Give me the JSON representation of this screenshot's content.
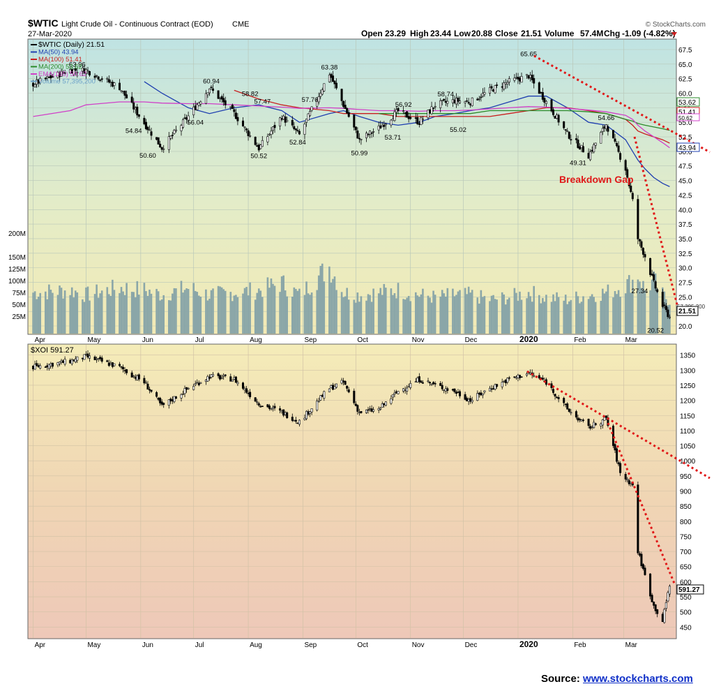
{
  "header": {
    "symbol": "$WTIC",
    "name": "Light Crude Oil - Continuous Contract (EOD)",
    "exchange": "CME",
    "date": "27-Mar-2020",
    "brand": "© StockCharts.com",
    "ohlc": {
      "open_label": "Open",
      "open": "23.29",
      "high_label": "High",
      "high": "23.44",
      "low_label": "Low",
      "low": "20.88",
      "close_label": "Close",
      "close": "21.51",
      "volume_label": "Volume",
      "volume": "57.4M",
      "chg_label": "Chg",
      "chg": "-1.09 (-4.82%)"
    }
  },
  "top_legend": [
    {
      "text": "$WTIC (Daily) 21.51",
      "color": "#000000"
    },
    {
      "text": "MA(50) 43.94",
      "color": "#1f3fb0"
    },
    {
      "text": "MA(100) 51.41",
      "color": "#c81e1e"
    },
    {
      "text": "MA(200) 53.62",
      "color": "#2a8a2a"
    },
    {
      "text": "EMA(165) 50.62",
      "color": "#d040c8"
    },
    {
      "text": "Volume 57,395,200",
      "color": "#6aa0c8"
    }
  ],
  "bottom_legend": {
    "text": "$XOI 591.27"
  },
  "annotations": {
    "breakdown": "Breakdown Gap",
    "wtic_last": "21.51",
    "wtic_last_vol": "57,395,200",
    "ma50": "43.94",
    "ma100": "51.41",
    "ma200": "53.62",
    "ema165": "50.62",
    "xoi_last": "591.27"
  },
  "source": {
    "label": "Source:",
    "link": "www.stockcharts.com"
  },
  "colors": {
    "price": "#000000",
    "ma50": "#1f3fb0",
    "ma100": "#c81e1e",
    "ma200": "#2a8a2a",
    "ema165": "#d040c8",
    "volume": "#8aa6a8",
    "trend": "#e01818"
  },
  "chart_data": [
    {
      "type": "line",
      "title": "$WTIC (Daily) 21.51",
      "subtitle": "Light Crude Oil - Continuous Contract (EOD) CME",
      "x_labels": [
        "Apr",
        "May",
        "Jun",
        "Jul",
        "Aug",
        "Sep",
        "Oct",
        "Nov",
        "Dec",
        "2020",
        "Feb",
        "Mar"
      ],
      "x": [
        "2019-04-01",
        "2019-04-22",
        "2019-05-01",
        "2019-05-20",
        "2019-06-03",
        "2019-06-13",
        "2019-06-28",
        "2019-07-10",
        "2019-07-24",
        "2019-08-07",
        "2019-08-20",
        "2019-08-30",
        "2019-09-16",
        "2019-09-24",
        "2019-10-03",
        "2019-10-14",
        "2019-10-25",
        "2019-11-06",
        "2019-11-15",
        "2019-11-26",
        "2019-12-05",
        "2019-12-16",
        "2019-12-27",
        "2020-01-07",
        "2020-01-17",
        "2020-01-29",
        "2020-02-10",
        "2020-02-20",
        "2020-03-02",
        "2020-03-06",
        "2020-03-09",
        "2020-03-13",
        "2020-03-18",
        "2020-03-23",
        "2020-03-27"
      ],
      "series": [
        {
          "name": "$WTIC",
          "values": [
            61.6,
            64.0,
            63.96,
            61.0,
            54.84,
            50.6,
            56.04,
            60.94,
            56.5,
            50.52,
            56.0,
            52.84,
            63.38,
            58.0,
            52.0,
            54.0,
            56.92,
            55.0,
            58.0,
            58.74,
            58.5,
            60.5,
            62.0,
            63.0,
            58.5,
            53.0,
            49.31,
            54.66,
            47.0,
            41.5,
            35.0,
            32.0,
            27.34,
            23.5,
            21.51
          ]
        },
        {
          "name": "MA(50)",
          "values": [
            null,
            null,
            null,
            null,
            62.0,
            60.0,
            57.5,
            56.5,
            57.5,
            58.0,
            57.0,
            55.0,
            56.5,
            57.0,
            56.0,
            55.0,
            54.5,
            55.0,
            56.0,
            56.5,
            57.0,
            57.5,
            58.5,
            59.5,
            59.5,
            57.5,
            55.0,
            54.5,
            52.0,
            50.0,
            48.5,
            47.0,
            45.5,
            44.5,
            43.94
          ]
        },
        {
          "name": "MA(100)",
          "values": [
            null,
            null,
            null,
            null,
            null,
            null,
            null,
            null,
            60.5,
            59.0,
            58.0,
            57.5,
            57.0,
            56.5,
            56.5,
            56.5,
            56.0,
            56.0,
            56.0,
            56.0,
            56.0,
            56.0,
            56.5,
            57.0,
            57.5,
            57.5,
            57.0,
            56.5,
            55.5,
            54.5,
            53.5,
            53.0,
            52.5,
            52.0,
            51.41
          ]
        },
        {
          "name": "MA(200)",
          "values": [
            null,
            null,
            null,
            null,
            null,
            null,
            null,
            null,
            null,
            null,
            null,
            null,
            null,
            null,
            null,
            56.5,
            56.5,
            56.5,
            56.5,
            56.5,
            56.5,
            57.0,
            57.0,
            57.0,
            57.0,
            57.0,
            56.8,
            56.5,
            55.5,
            55.2,
            54.8,
            54.5,
            54.2,
            53.9,
            53.62
          ]
        },
        {
          "name": "EMA(165)",
          "values": [
            56.0,
            57.0,
            58.0,
            58.5,
            58.5,
            58.3,
            58.2,
            58.2,
            58.0,
            57.8,
            57.6,
            57.4,
            57.5,
            57.4,
            57.2,
            57.0,
            57.0,
            56.9,
            57.0,
            57.0,
            57.1,
            57.3,
            57.5,
            57.7,
            57.6,
            57.4,
            57.1,
            56.8,
            56.2,
            55.5,
            54.5,
            53.5,
            52.5,
            51.5,
            50.62
          ]
        }
      ],
      "volume_millions": [
        75,
        80,
        70,
        85,
        80,
        70,
        85,
        70,
        75,
        80,
        95,
        70,
        130,
        75,
        70,
        75,
        80,
        70,
        65,
        70,
        70,
        60,
        65,
        75,
        65,
        60,
        70,
        75,
        90,
        100,
        115,
        80,
        100,
        70,
        57.4
      ],
      "annotated_values": [
        {
          "label": "63.96",
          "value": 63.96
        },
        {
          "label": "54.84",
          "value": 54.84
        },
        {
          "label": "50.60",
          "value": 50.6
        },
        {
          "label": "60.94",
          "value": 60.94
        },
        {
          "label": "56.04",
          "value": 56.04
        },
        {
          "label": "58.82",
          "value": 58.82
        },
        {
          "label": "57.47",
          "value": 57.47
        },
        {
          "label": "50.52",
          "value": 50.52
        },
        {
          "label": "52.84",
          "value": 52.84
        },
        {
          "label": "57.76",
          "value": 57.76
        },
        {
          "label": "63.38",
          "value": 63.38
        },
        {
          "label": "50.99",
          "value": 50.99
        },
        {
          "label": "56.92",
          "value": 56.92
        },
        {
          "label": "53.71",
          "value": 53.71
        },
        {
          "label": "58.74",
          "value": 58.74
        },
        {
          "label": "55.02",
          "value": 55.02
        },
        {
          "label": "65.65",
          "value": 65.65
        },
        {
          "label": "49.31",
          "value": 49.31
        },
        {
          "label": "54.66",
          "value": 54.66
        },
        {
          "label": "27.34",
          "value": 27.34
        },
        {
          "label": "20.52",
          "value": 20.52
        }
      ],
      "y_ticks": [
        "20.0",
        "22.5",
        "25.0",
        "27.5",
        "30.0",
        "32.5",
        "35.0",
        "37.5",
        "40.0",
        "42.5",
        "45.0",
        "47.5",
        "50.0",
        "52.5",
        "55.0",
        "57.5",
        "60.0",
        "62.5",
        "65.0",
        "67.5"
      ],
      "ylim": [
        20,
        67.5
      ],
      "volume_ticks": [
        "25M",
        "50M",
        "75M",
        "100M",
        "125M",
        "150M",
        "200M"
      ],
      "grid": true
    },
    {
      "type": "line",
      "title": "$XOI 591.27",
      "x_labels": [
        "Apr",
        "May",
        "Jun",
        "Jul",
        "Aug",
        "Sep",
        "Oct",
        "Nov",
        "Dec",
        "2020",
        "Feb",
        "Mar"
      ],
      "x": [
        "2019-04-01",
        "2019-04-22",
        "2019-05-01",
        "2019-05-20",
        "2019-06-03",
        "2019-06-13",
        "2019-06-28",
        "2019-07-10",
        "2019-07-24",
        "2019-08-07",
        "2019-08-20",
        "2019-08-30",
        "2019-09-16",
        "2019-09-24",
        "2019-10-03",
        "2019-10-14",
        "2019-10-25",
        "2019-11-06",
        "2019-11-15",
        "2019-11-26",
        "2019-12-05",
        "2019-12-16",
        "2019-12-27",
        "2020-01-07",
        "2020-01-17",
        "2020-01-29",
        "2020-02-10",
        "2020-02-20",
        "2020-02-28",
        "2020-03-06",
        "2020-03-09",
        "2020-03-13",
        "2020-03-18",
        "2020-03-23",
        "2020-03-27"
      ],
      "series": [
        {
          "name": "$XOI",
          "values": [
            1310,
            1330,
            1345,
            1310,
            1260,
            1180,
            1240,
            1280,
            1270,
            1190,
            1160,
            1130,
            1240,
            1260,
            1160,
            1170,
            1230,
            1270,
            1250,
            1230,
            1200,
            1240,
            1270,
            1290,
            1260,
            1170,
            1110,
            1140,
            960,
            920,
            700,
            620,
            520,
            470,
            591.27
          ]
        }
      ],
      "y_ticks": [
        "450",
        "500",
        "550",
        "600",
        "650",
        "700",
        "750",
        "800",
        "850",
        "900",
        "950",
        "1000",
        "1050",
        "1100",
        "1150",
        "1200",
        "1250",
        "1300",
        "1350"
      ],
      "ylim": [
        430,
        1370
      ],
      "grid": true
    }
  ]
}
